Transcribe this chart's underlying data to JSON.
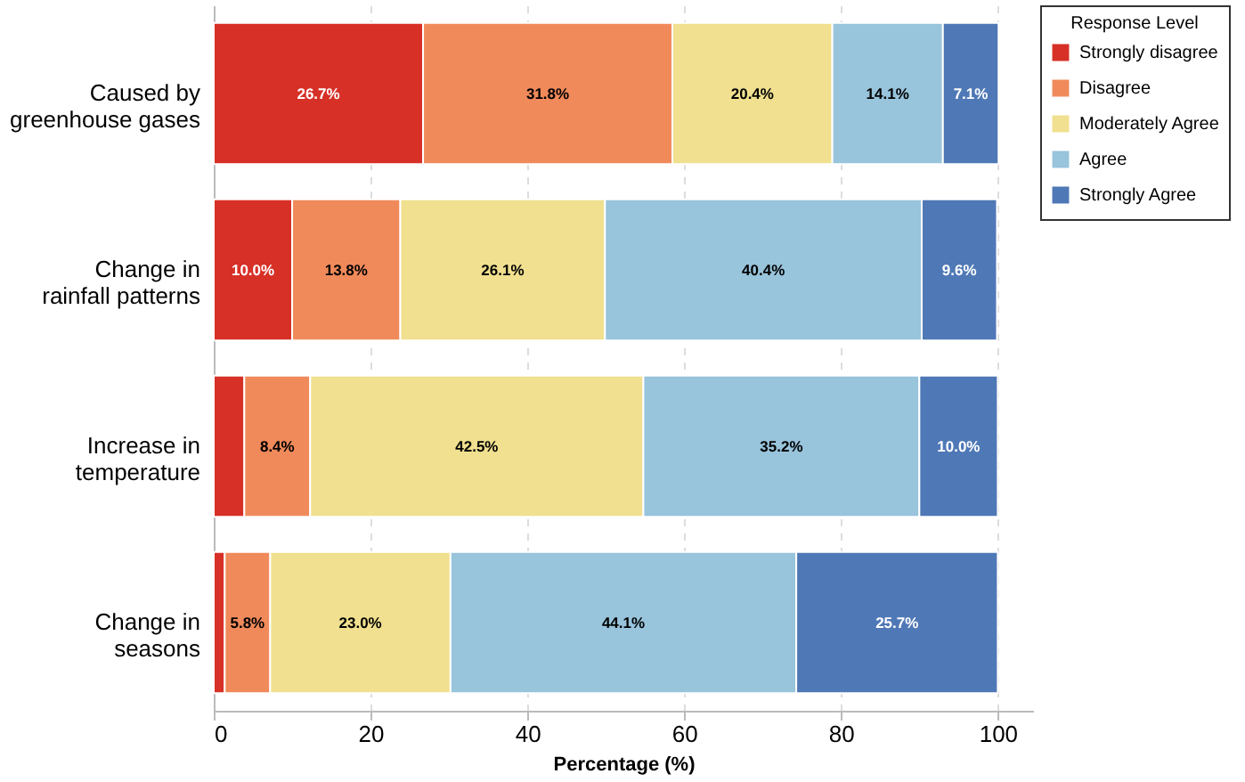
{
  "chart_data": {
    "type": "bar",
    "orientation": "horizontal",
    "stacked": true,
    "categories": [
      "Caused by greenhouse gases",
      "Change in rainfall patterns",
      "Increase in temperature",
      "Change in seasons"
    ],
    "series": [
      {
        "name": "Strongly disagree",
        "color": "#d73027",
        "values": [
          26.7,
          10.0,
          3.9,
          1.4
        ],
        "value_labels": [
          "26.7%",
          "10.0%",
          null,
          null
        ]
      },
      {
        "name": "Disagree",
        "color": "#f08a5b",
        "values": [
          31.8,
          13.8,
          8.4,
          5.8
        ],
        "value_labels": [
          "31.8%",
          "13.8%",
          "8.4%",
          "5.8%"
        ]
      },
      {
        "name": "Moderately Agree",
        "color": "#f0e08f",
        "values": [
          20.4,
          26.1,
          42.5,
          23.0
        ],
        "value_labels": [
          "20.4%",
          "26.1%",
          "42.5%",
          "23.0%"
        ]
      },
      {
        "name": "Agree",
        "color": "#98c4dc",
        "values": [
          14.1,
          40.4,
          35.2,
          44.1
        ],
        "value_labels": [
          "14.1%",
          "40.4%",
          "35.2%",
          "44.1%"
        ]
      },
      {
        "name": "Strongly Agree",
        "color": "#4f78b6",
        "values": [
          7.1,
          9.6,
          10.0,
          25.7
        ],
        "value_labels": [
          "7.1%",
          "9.6%",
          "10.0%",
          "25.7%"
        ]
      }
    ],
    "xlabel": "Percentage (%)",
    "legend_title": "Response Level",
    "xlim": [
      0,
      104.5
    ],
    "xticks": [
      0,
      20,
      40,
      60,
      80,
      100
    ],
    "grid": "x",
    "legend": "top right"
  }
}
